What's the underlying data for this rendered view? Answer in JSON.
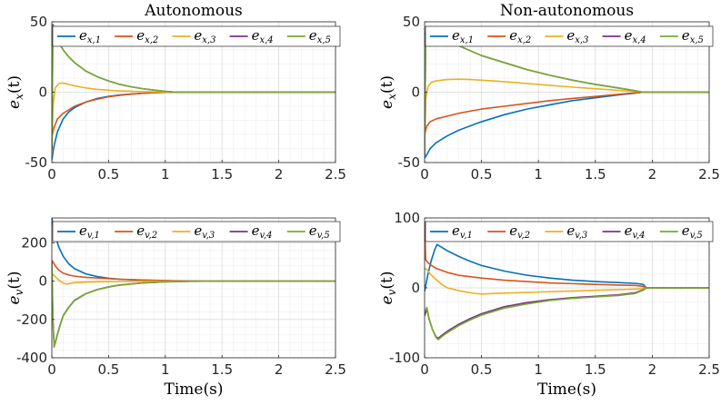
{
  "colors": [
    "#0072BD",
    "#D95319",
    "#EDB120",
    "#7E2F8E",
    "#77AC30"
  ],
  "chart_data": [
    {
      "type": "line",
      "id": "ax-ex-auto",
      "title": "Autonomous",
      "ylabel_main": "e",
      "ylabel_sub": "x",
      "ylabel_arg": "(t)",
      "xlabel": "",
      "xlim": [
        0,
        2.5
      ],
      "ylim": [
        -50,
        50
      ],
      "xticks": [
        0,
        0.5,
        1,
        1.5,
        2,
        2.5
      ],
      "xtick_labels": [
        "0",
        "0.5",
        "1",
        "1.5",
        "2",
        "2.5"
      ],
      "yticks": [
        -50,
        0,
        50
      ],
      "ytick_labels": [
        "-50",
        "0",
        "50"
      ],
      "grid": true,
      "legend_position": "top",
      "series": [
        {
          "name": "e_x,1",
          "legend_sub": "x,1",
          "x": [
            0,
            0.02,
            0.05,
            0.1,
            0.15,
            0.2,
            0.3,
            0.4,
            0.5,
            0.6,
            0.7,
            0.8,
            0.9,
            1.0,
            1.1,
            1.5,
            2.0,
            2.5
          ],
          "y": [
            -48,
            -38,
            -28,
            -19,
            -14,
            -11,
            -7,
            -4.5,
            -3,
            -2,
            -1.3,
            -0.8,
            -0.4,
            -0.15,
            0,
            0,
            0,
            0
          ]
        },
        {
          "name": "e_x,2",
          "legend_sub": "x,2",
          "x": [
            0,
            0.02,
            0.05,
            0.1,
            0.2,
            0.3,
            0.4,
            0.5,
            0.6,
            0.7,
            0.8,
            0.9,
            1.0,
            1.1,
            1.5,
            2.0,
            2.5
          ],
          "y": [
            -32,
            -25,
            -19,
            -15,
            -10,
            -7,
            -5,
            -3.3,
            -2.2,
            -1.4,
            -0.8,
            -0.4,
            -0.15,
            0,
            0,
            0,
            0
          ]
        },
        {
          "name": "e_x,3",
          "legend_sub": "x,3",
          "x": [
            0,
            0.01,
            0.03,
            0.06,
            0.1,
            0.15,
            0.2,
            0.3,
            0.4,
            0.5,
            0.6,
            0.8,
            1.0,
            1.1,
            1.5,
            2.0,
            2.5
          ],
          "y": [
            -45,
            -10,
            3,
            6,
            6.5,
            5.5,
            4.5,
            3,
            2,
            1.4,
            0.9,
            0.4,
            0.1,
            0,
            0,
            0,
            0
          ]
        },
        {
          "name": "e_x,4",
          "legend_sub": "x,4",
          "x": [
            0,
            0.01,
            0.03,
            0.05,
            0.1,
            0.15,
            0.2,
            0.3,
            0.4,
            0.5,
            0.6,
            0.7,
            0.8,
            0.9,
            1.0,
            1.1,
            1.5,
            2.0,
            2.5
          ],
          "y": [
            -40,
            48,
            42,
            37,
            30,
            25,
            21,
            15,
            11,
            8,
            5.5,
            3.8,
            2.5,
            1.5,
            0.6,
            0,
            0,
            0,
            0
          ]
        },
        {
          "name": "e_x,5",
          "legend_sub": "x,5",
          "x": [
            0,
            0.01,
            0.03,
            0.05,
            0.1,
            0.15,
            0.2,
            0.3,
            0.4,
            0.5,
            0.6,
            0.7,
            0.8,
            0.9,
            1.0,
            1.1,
            1.5,
            2.0,
            2.5
          ],
          "y": [
            -38,
            47,
            42,
            37,
            30,
            25,
            21,
            15,
            11,
            8,
            5.5,
            3.8,
            2.5,
            1.5,
            0.6,
            0,
            0,
            0,
            0
          ]
        }
      ]
    },
    {
      "type": "line",
      "id": "ax-ex-nonauto",
      "title": "Non-autonomous",
      "ylabel_main": "e",
      "ylabel_sub": "x",
      "ylabel_arg": "(t)",
      "xlabel": "",
      "xlim": [
        0,
        2.5
      ],
      "ylim": [
        -50,
        50
      ],
      "xticks": [
        0,
        0.5,
        1,
        1.5,
        2,
        2.5
      ],
      "xtick_labels": [
        "0",
        "0.5",
        "1",
        "1.5",
        "2",
        "2.5"
      ],
      "yticks": [
        -50,
        0,
        50
      ],
      "ytick_labels": [
        "-50",
        "0",
        "50"
      ],
      "grid": true,
      "legend_position": "top",
      "series": [
        {
          "name": "e_x,1",
          "legend_sub": "x,1",
          "x": [
            0,
            0.05,
            0.1,
            0.2,
            0.3,
            0.5,
            0.7,
            0.9,
            1.1,
            1.3,
            1.5,
            1.7,
            1.85,
            1.92,
            2.0,
            2.5
          ],
          "y": [
            -47,
            -40,
            -36,
            -31,
            -27,
            -21,
            -16,
            -12,
            -9,
            -6,
            -4,
            -2,
            -0.7,
            0,
            0,
            0
          ]
        },
        {
          "name": "e_x,2",
          "legend_sub": "x,2",
          "x": [
            0,
            0.02,
            0.05,
            0.1,
            0.2,
            0.3,
            0.5,
            0.7,
            0.9,
            1.1,
            1.3,
            1.5,
            1.7,
            1.85,
            1.92,
            2.0,
            2.5
          ],
          "y": [
            -30,
            -24,
            -21,
            -19,
            -17,
            -15,
            -12,
            -10,
            -8,
            -6,
            -4.5,
            -3,
            -1.6,
            -0.5,
            0,
            0,
            0
          ]
        },
        {
          "name": "e_x,3",
          "legend_sub": "x,3",
          "x": [
            0,
            0.01,
            0.03,
            0.06,
            0.1,
            0.2,
            0.3,
            0.4,
            0.6,
            0.8,
            1.0,
            1.2,
            1.4,
            1.6,
            1.8,
            1.92,
            2.0,
            2.5
          ],
          "y": [
            -40,
            -5,
            4,
            7,
            8,
            9,
            9.2,
            9,
            8,
            6.8,
            5.5,
            4.2,
            3,
            1.9,
            0.8,
            0,
            0,
            0
          ]
        },
        {
          "name": "e_x,4",
          "legend_sub": "x,4",
          "x": [
            0,
            0.01,
            0.03,
            0.05,
            0.1,
            0.2,
            0.3,
            0.5,
            0.7,
            0.9,
            1.1,
            1.3,
            1.5,
            1.7,
            1.85,
            1.92,
            2.0,
            2.5
          ],
          "y": [
            -45,
            42,
            46,
            45,
            42,
            37,
            33,
            26,
            21,
            16,
            12,
            8.5,
            5.5,
            3,
            1,
            0,
            0,
            0
          ]
        },
        {
          "name": "e_x,5",
          "legend_sub": "x,5",
          "x": [
            0,
            0.01,
            0.03,
            0.05,
            0.1,
            0.2,
            0.3,
            0.5,
            0.7,
            0.9,
            1.1,
            1.3,
            1.5,
            1.7,
            1.85,
            1.92,
            2.0,
            2.5
          ],
          "y": [
            -42,
            40,
            44,
            44,
            42,
            37,
            33,
            26,
            21,
            16,
            12,
            8.5,
            5.5,
            3,
            1,
            0,
            0,
            0
          ]
        }
      ]
    },
    {
      "type": "line",
      "id": "ax-ev-auto",
      "title": "",
      "ylabel_main": "e",
      "ylabel_sub": "v",
      "ylabel_arg": "(t)",
      "xlabel": "Time(s)",
      "xlim": [
        0,
        2.5
      ],
      "ylim": [
        -400,
        330
      ],
      "xticks": [
        0,
        0.5,
        1,
        1.5,
        2,
        2.5
      ],
      "xtick_labels": [
        "0",
        "0.5",
        "1",
        "1.5",
        "2",
        "2.5"
      ],
      "yticks": [
        -400,
        -200,
        0,
        200
      ],
      "ytick_labels": [
        "-400",
        "-200",
        "0",
        "200"
      ],
      "grid": true,
      "legend_position": "top",
      "series": [
        {
          "name": "e_v,1",
          "legend_sub": "v,1",
          "x": [
            0,
            0.01,
            0.03,
            0.06,
            0.1,
            0.15,
            0.2,
            0.3,
            0.4,
            0.5,
            0.6,
            0.8,
            1.0,
            1.2,
            1.5,
            2.0,
            2.5
          ],
          "y": [
            330,
            300,
            240,
            180,
            130,
            90,
            65,
            38,
            24,
            15,
            10,
            5,
            2,
            0.5,
            0,
            0,
            0
          ]
        },
        {
          "name": "e_v,2",
          "legend_sub": "v,2",
          "x": [
            0,
            0.01,
            0.03,
            0.06,
            0.1,
            0.15,
            0.2,
            0.3,
            0.4,
            0.5,
            0.6,
            0.8,
            1.0,
            1.2,
            1.5,
            2.0,
            2.5
          ],
          "y": [
            110,
            100,
            80,
            58,
            42,
            32,
            26,
            20,
            16,
            13,
            10,
            6,
            3,
            1,
            0,
            0,
            0
          ]
        },
        {
          "name": "e_v,3",
          "legend_sub": "v,3",
          "x": [
            0,
            0.02,
            0.05,
            0.08,
            0.1,
            0.13,
            0.17,
            0.2,
            0.3,
            0.4,
            0.5,
            0.6,
            0.8,
            1.0,
            1.2,
            1.5,
            2.0,
            2.5
          ],
          "y": [
            40,
            30,
            12,
            -3,
            -10,
            -15,
            -11,
            -8,
            -5,
            -3.5,
            -2.5,
            -1.7,
            -0.8,
            -0.3,
            0,
            0,
            0,
            0
          ]
        },
        {
          "name": "e_v,4",
          "legend_sub": "v,4",
          "x": [
            0,
            0.01,
            0.02,
            0.03,
            0.05,
            0.08,
            0.1,
            0.15,
            0.2,
            0.3,
            0.4,
            0.5,
            0.6,
            0.8,
            1.0,
            1.2,
            1.5,
            2.0,
            2.5
          ],
          "y": [
            100,
            -200,
            -340,
            -320,
            -275,
            -215,
            -180,
            -135,
            -100,
            -65,
            -44,
            -30,
            -20,
            -9,
            -3.5,
            -1,
            0,
            0,
            0
          ]
        },
        {
          "name": "e_v,5",
          "legend_sub": "v,5",
          "x": [
            0,
            0.01,
            0.02,
            0.03,
            0.05,
            0.08,
            0.1,
            0.15,
            0.2,
            0.3,
            0.4,
            0.5,
            0.6,
            0.8,
            1.0,
            1.2,
            1.5,
            2.0,
            2.5
          ],
          "y": [
            90,
            -210,
            -345,
            -325,
            -278,
            -218,
            -182,
            -137,
            -102,
            -66,
            -45,
            -31,
            -21,
            -9.5,
            -3.8,
            -1.2,
            0,
            0,
            0
          ]
        }
      ]
    },
    {
      "type": "line",
      "id": "ax-ev-nonauto",
      "title": "",
      "ylabel_main": "e",
      "ylabel_sub": "v",
      "ylabel_arg": "(t)",
      "xlabel": "Time(s)",
      "xlim": [
        0,
        2.5
      ],
      "ylim": [
        -100,
        100
      ],
      "xticks": [
        0,
        0.5,
        1,
        1.5,
        2,
        2.5
      ],
      "xtick_labels": [
        "0",
        "0.5",
        "1",
        "1.5",
        "2",
        "2.5"
      ],
      "yticks": [
        -100,
        0,
        100
      ],
      "ytick_labels": [
        "-100",
        "0",
        "100"
      ],
      "grid": true,
      "legend_position": "top",
      "series": [
        {
          "name": "e_v,1",
          "legend_sub": "v,1",
          "x": [
            0,
            0.03,
            0.06,
            0.09,
            0.11,
            0.15,
            0.2,
            0.3,
            0.4,
            0.5,
            0.7,
            0.9,
            1.1,
            1.3,
            1.5,
            1.7,
            1.85,
            1.92,
            1.95,
            2.0,
            2.5
          ],
          "y": [
            -5,
            20,
            40,
            55,
            62,
            58,
            53,
            45,
            38,
            32,
            24,
            18,
            14,
            11,
            9,
            7.5,
            6.5,
            5,
            0,
            0,
            0
          ]
        },
        {
          "name": "e_v,2",
          "legend_sub": "v,2",
          "x": [
            0,
            0.01,
            0.03,
            0.06,
            0.1,
            0.15,
            0.2,
            0.3,
            0.4,
            0.5,
            0.7,
            0.9,
            1.1,
            1.3,
            1.5,
            1.7,
            1.85,
            1.92,
            1.95,
            2.0,
            2.5
          ],
          "y": [
            95,
            40,
            36,
            32,
            28,
            25,
            22,
            18,
            16,
            14,
            11,
            9,
            7,
            6,
            5,
            4,
            3.5,
            2,
            0,
            0,
            0
          ]
        },
        {
          "name": "e_v,3",
          "legend_sub": "v,3",
          "x": [
            0,
            0.02,
            0.05,
            0.1,
            0.15,
            0.2,
            0.3,
            0.4,
            0.5,
            0.6,
            0.8,
            1.0,
            1.2,
            1.4,
            1.6,
            1.8,
            1.9,
            1.95,
            2.0,
            2.5
          ],
          "y": [
            28,
            26,
            20,
            12,
            5,
            0,
            -4,
            -7,
            -9,
            -8,
            -7,
            -6,
            -5,
            -4,
            -3,
            -2,
            -1.5,
            0,
            0,
            0
          ]
        },
        {
          "name": "e_v,4",
          "legend_sub": "v,4",
          "x": [
            0,
            0.02,
            0.04,
            0.07,
            0.1,
            0.12,
            0.15,
            0.2,
            0.3,
            0.4,
            0.5,
            0.7,
            0.9,
            1.1,
            1.3,
            1.5,
            1.7,
            1.85,
            1.92,
            1.95,
            2.0,
            2.5
          ],
          "y": [
            -40,
            -30,
            -45,
            -60,
            -70,
            -72,
            -68,
            -62,
            -52,
            -44,
            -37,
            -27,
            -21,
            -17,
            -14,
            -12,
            -10,
            -7,
            -3,
            0,
            0,
            0
          ]
        },
        {
          "name": "e_v,5",
          "legend_sub": "v,5",
          "x": [
            0,
            0.02,
            0.04,
            0.07,
            0.1,
            0.12,
            0.15,
            0.2,
            0.3,
            0.4,
            0.5,
            0.7,
            0.9,
            1.1,
            1.3,
            1.5,
            1.7,
            1.85,
            1.92,
            1.95,
            2.0,
            2.5
          ],
          "y": [
            -35,
            -28,
            -44,
            -60,
            -71,
            -74,
            -70,
            -64,
            -54,
            -46,
            -39,
            -29,
            -23,
            -18,
            -15,
            -13,
            -11,
            -8,
            -3.5,
            0,
            0,
            0
          ]
        }
      ]
    }
  ]
}
